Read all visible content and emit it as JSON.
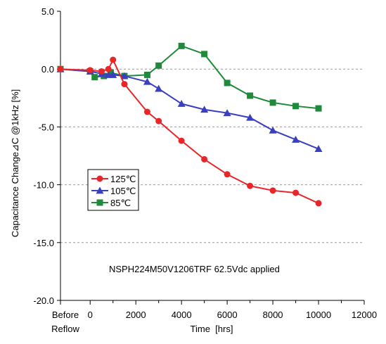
{
  "chart_data": {
    "type": "line",
    "xlabel": "Time  [hrs]",
    "ylabel": "Capacitance Change⊿C @1kHz [%]",
    "annotation": "NSPH224M50V1206TRF 62.5Vdc applied",
    "xlim": [
      -1300,
      12000
    ],
    "ylim": [
      -20.0,
      5.0
    ],
    "x_ticks": [
      0,
      2000,
      4000,
      6000,
      8000,
      10000,
      12000
    ],
    "x_tick_labels": [
      "0",
      "2000",
      "4000",
      "6000",
      "8000",
      "10000",
      "12000"
    ],
    "x_extra_tick": {
      "x": -1300,
      "line1": "Before",
      "line2": "Reflow"
    },
    "y_ticks": [
      5.0,
      0.0,
      -5.0,
      -10.0,
      -15.0,
      -20.0
    ],
    "y_tick_labels": [
      "5.0",
      "0.0",
      "-5.0",
      "-10.0",
      "-15.0",
      "-20.0"
    ],
    "grid": "horizontal dashed",
    "legend_position": "left-middle",
    "series": [
      {
        "name": "125℃",
        "color": "#e8262a",
        "marker": "circle",
        "points": [
          [
            -1300,
            0.0
          ],
          [
            0,
            -0.1
          ],
          [
            500,
            -0.2
          ],
          [
            800,
            0.0
          ],
          [
            1000,
            0.8
          ],
          [
            1500,
            -1.3
          ],
          [
            2500,
            -3.7
          ],
          [
            3000,
            -4.5
          ],
          [
            4000,
            -6.2
          ],
          [
            5000,
            -7.8
          ],
          [
            6000,
            -9.1
          ],
          [
            7000,
            -10.1
          ],
          [
            8000,
            -10.5
          ],
          [
            9000,
            -10.7
          ],
          [
            10000,
            -11.6
          ]
        ]
      },
      {
        "name": "105℃",
        "color": "#3a3fbf",
        "marker": "triangle",
        "points": [
          [
            -1300,
            0.0
          ],
          [
            0,
            -0.2
          ],
          [
            500,
            -0.4
          ],
          [
            800,
            -0.5
          ],
          [
            1000,
            -0.5
          ],
          [
            1500,
            -0.6
          ],
          [
            2500,
            -1.1
          ],
          [
            3000,
            -1.7
          ],
          [
            4000,
            -3.0
          ],
          [
            5000,
            -3.5
          ],
          [
            6000,
            -3.8
          ],
          [
            7000,
            -4.2
          ],
          [
            8000,
            -5.3
          ],
          [
            9000,
            -6.1
          ],
          [
            10000,
            -6.9
          ]
        ]
      },
      {
        "name": "85℃",
        "color": "#1f8a3a",
        "marker": "square",
        "points": [
          [
            -1300,
            0.0
          ],
          [
            0,
            -0.2
          ],
          [
            200,
            -0.7
          ],
          [
            600,
            -0.6
          ],
          [
            900,
            -0.3
          ],
          [
            1500,
            -0.6
          ],
          [
            2500,
            -0.5
          ],
          [
            3000,
            0.3
          ],
          [
            4000,
            2.0
          ],
          [
            5000,
            1.3
          ],
          [
            6000,
            -1.2
          ],
          [
            7000,
            -2.3
          ],
          [
            8000,
            -2.9
          ],
          [
            9000,
            -3.2
          ],
          [
            10000,
            -3.4
          ]
        ]
      }
    ]
  }
}
